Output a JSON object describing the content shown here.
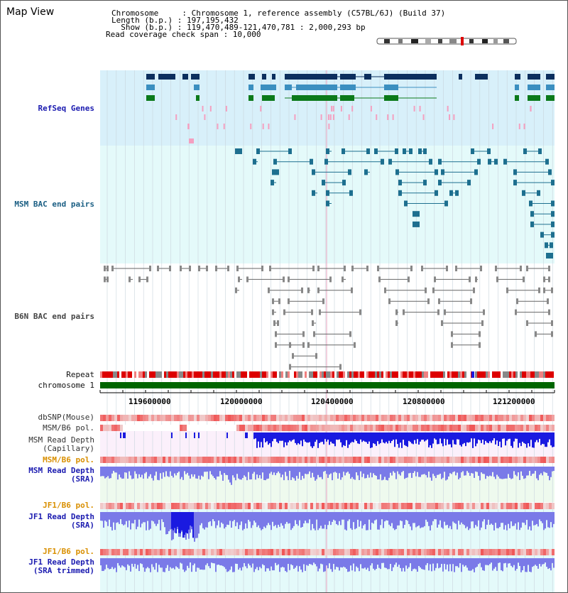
{
  "header": {
    "title": "Map View",
    "chromosome_line": "Chromosome     : Chromosome 1, reference assembly (C57BL/6J) (Build 37)",
    "length_line": "Length (b.p.) : 197,195,432",
    "show_line": "  Show (b.p.) : 119,470,489-121,470,781 : 2,000,293 bp",
    "coverage_line": "Read coverage check span : 10,000"
  },
  "tracks": {
    "refseq": "RefSeq Genes",
    "msm_bac": "MSM BAC end pairs",
    "b6n_bac": "B6N BAC end pairs",
    "repeat": "Repeat",
    "chromosome": "chromosome 1",
    "dbsnp": "dbSNP(Mouse)",
    "msm_b6_pol": "MSM/B6 pol.",
    "msm_depth_cap_1": "MSM Read Depth",
    "msm_depth_cap_2": "(Capillary)",
    "msm_b6_pol_2": "MSM/B6 pol.",
    "msm_depth_sra_1": "MSM Read Depth",
    "msm_depth_sra_2": "(SRA)",
    "jf1_b6_pol": "JF1/B6 pol.",
    "jf1_depth_sra_1": "JF1 Read Depth",
    "jf1_depth_sra_2": "(SRA)",
    "jf1_b6_pol_2": "JF1/B6 pol.",
    "jf1_depth_trim_1": "JF1 Read Depth",
    "jf1_depth_trim_2": "(SRA trimmed)"
  },
  "axis": {
    "ticks": [
      "119600000",
      "120000000",
      "120400000",
      "120800000",
      "121200000"
    ]
  },
  "colors": {
    "refseq_bg": "#d8f0fa",
    "msm_bg": "#e4fafa",
    "gene_dark": "#0c2f5e",
    "gene_mid": "#3b8fc0",
    "gene_green": "#0b7a1a",
    "snp_pink": "#f4a0c0",
    "bac_teal": "#1d6f8f",
    "bac_gray": "#666666",
    "chromosome_green": "#006600",
    "repeat_red": "#dd0000",
    "depth_blue": "#1a1ae0",
    "depth_light": "#7a7ae8",
    "pol_red": "#ee5555"
  }
}
